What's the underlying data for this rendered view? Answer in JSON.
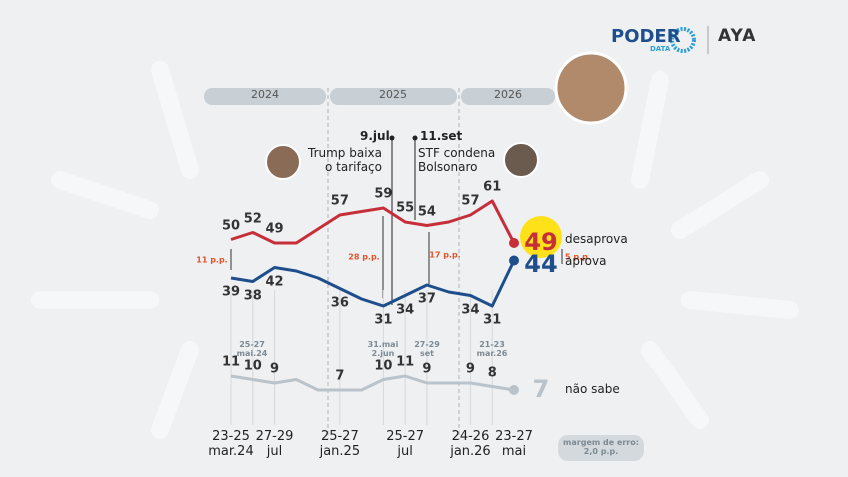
{
  "header": {
    "brand": "PODER",
    "brand_sub": "DATA",
    "partner": "AYA"
  },
  "chart_data": {
    "type": "line",
    "categories": [
      "23-25\nmar.24",
      null,
      "27-29\njul",
      null,
      null,
      "25-27\njan.25",
      null,
      null,
      "25-27\njul",
      null,
      null,
      "24-26\njan.26",
      null,
      "23-27\nmai"
    ],
    "series": [
      {
        "name": "desaprova",
        "color": "#c62f3a",
        "values": [
          50,
          52,
          49,
          49,
          53,
          57,
          58,
          59,
          55,
          54,
          55,
          57,
          61,
          49
        ]
      },
      {
        "name": "aprova",
        "color": "#1f4e8c",
        "values": [
          39,
          38,
          42,
          41,
          39,
          36,
          33,
          31,
          34,
          37,
          35,
          34,
          31,
          44
        ]
      },
      {
        "name": "não sabe",
        "color": "#b9c3c9",
        "values": [
          11,
          10,
          9,
          10,
          7,
          7,
          7,
          10,
          11,
          9,
          9,
          9,
          8,
          7
        ]
      }
    ],
    "labeled_points": [
      0,
      1,
      2,
      5,
      7,
      8,
      9,
      11,
      12,
      13
    ],
    "periods": [
      "2024",
      "2025",
      "2026"
    ],
    "events": [
      {
        "label": "9.jul",
        "text": "Trump baixa\no tarifaço"
      },
      {
        "label": "11.set",
        "text": "STF condena\nBolsonaro"
      }
    ],
    "gaps": [
      "11 p.p.",
      "28 p.p.",
      "17 p.p.",
      "5 p.p."
    ],
    "date_notes": [
      "25-27\nmai.24",
      "31.mai\n2.jun",
      "27-29\nset",
      "21-23\nmar.26"
    ],
    "margin_note": "margem de erro:\n2,0 p.p."
  }
}
